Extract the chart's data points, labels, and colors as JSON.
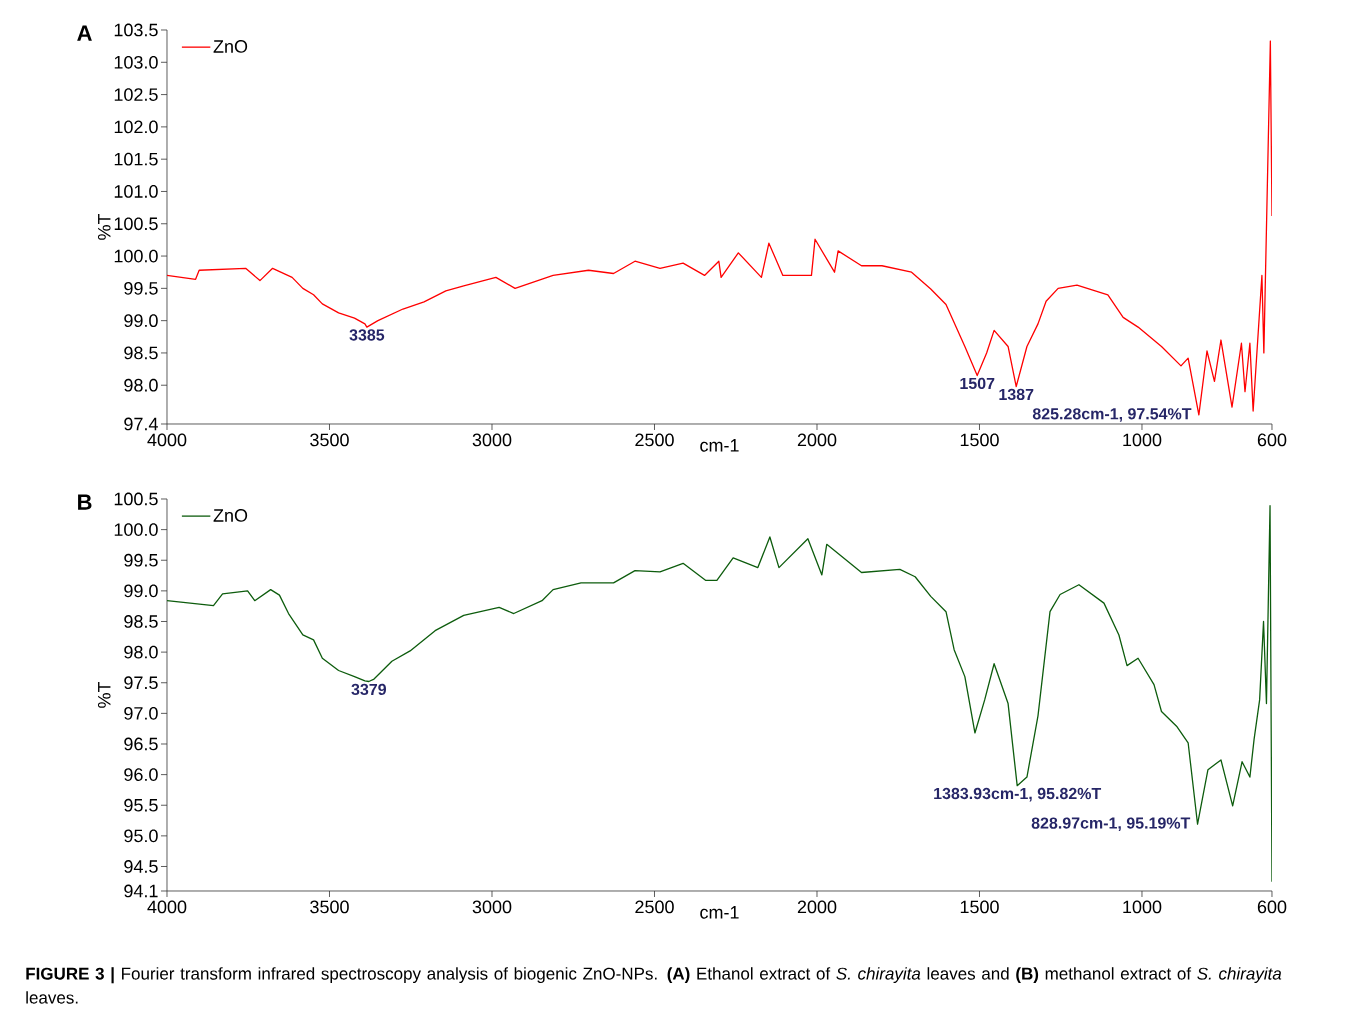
{
  "chart_data": [
    {
      "type": "line",
      "title": "A",
      "xlabel": "cm-1",
      "ylabel": "%T",
      "xlim": [
        4000,
        600
      ],
      "xticks": [
        4000,
        3500,
        3000,
        2500,
        2000,
        1500,
        1000,
        600
      ],
      "ylim": [
        97.4,
        103.5
      ],
      "yticks": [
        97.4,
        {
          "value": 98,
          "label": "98.0"
        },
        98.5,
        {
          "value": 99,
          "label": "99.0"
        },
        99.5,
        {
          "value": 100,
          "label": "100.0"
        },
        100.5,
        {
          "value": 101,
          "label": "101.0"
        },
        101.5,
        {
          "value": 102,
          "label": "102.0"
        },
        102.5,
        {
          "value": 103,
          "label": "103.0"
        },
        103.5
      ],
      "legend": "top left",
      "marker": "none",
      "line_style": "solid",
      "series": [
        {
          "name": "ZnO",
          "color": "#ff0000",
          "x": [
            4000,
            3912,
            3901,
            3758,
            3714,
            3675,
            3615,
            3582,
            3549,
            3522,
            3472,
            3423,
            3391,
            3385,
            3351,
            3274,
            3209,
            3142,
            3087,
            2988,
            2929,
            2812,
            2703,
            2626,
            2560,
            2483,
            2412,
            2346,
            2302,
            2295,
            2242,
            2171,
            2148,
            2105,
            2017,
            2006,
            1946,
            1935,
            1863,
            1800,
            1709,
            1650,
            1603,
            1545,
            1507,
            1478,
            1455,
            1412,
            1387,
            1354,
            1320,
            1295,
            1258,
            1200,
            1105,
            1058,
            1012,
            940,
            880,
            858,
            825,
            800,
            777,
            757,
            723,
            694,
            683,
            668,
            658,
            631,
            625,
            605,
            600
          ],
          "values": [
            99.7,
            99.64,
            99.78,
            99.81,
            99.62,
            99.81,
            99.67,
            99.5,
            99.4,
            99.26,
            99.12,
            99.04,
            98.95,
            98.9,
            99.0,
            99.18,
            99.29,
            99.46,
            99.54,
            99.67,
            99.5,
            99.7,
            99.78,
            99.73,
            99.92,
            99.81,
            99.89,
            99.7,
            99.92,
            99.67,
            100.05,
            99.67,
            100.2,
            99.7,
            99.7,
            100.26,
            99.75,
            100.08,
            99.85,
            99.85,
            99.75,
            99.49,
            99.25,
            98.6,
            98.15,
            98.5,
            98.85,
            98.6,
            97.98,
            98.6,
            98.95,
            99.3,
            99.5,
            99.55,
            99.4,
            99.05,
            98.9,
            98.6,
            98.3,
            98.42,
            97.54,
            98.53,
            98.06,
            98.7,
            97.66,
            98.65,
            97.9,
            98.65,
            97.6,
            99.7,
            98.5,
            103.33,
            100.62
          ]
        }
      ],
      "annotations": [
        {
          "text": "3385",
          "x": 3385,
          "y": 98.9
        },
        {
          "text": "1507",
          "x": 1507,
          "y": 98.15
        },
        {
          "text": "1387",
          "x": 1387,
          "y": 97.98
        },
        {
          "text": "825.28cm-1, 97.54%T",
          "x": 825.28,
          "y": 97.54
        }
      ]
    },
    {
      "type": "line",
      "title": "B",
      "xlabel": "cm-1",
      "ylabel": "%T",
      "xlim": [
        4000,
        600
      ],
      "xticks": [
        4000,
        3500,
        3000,
        2500,
        2000,
        1500,
        1000,
        600
      ],
      "ylim": [
        94.1,
        100.5
      ],
      "yticks": [
        94.1,
        94.5,
        {
          "value": 95,
          "label": "95.0"
        },
        95.5,
        {
          "value": 96,
          "label": "96.0"
        },
        96.5,
        {
          "value": 97,
          "label": "97.0"
        },
        97.5,
        {
          "value": 98,
          "label": "98.0"
        },
        98.5,
        {
          "value": 99,
          "label": "99.0"
        },
        99.5,
        {
          "value": 100,
          "label": "100.0"
        },
        100.5
      ],
      "legend": "top left",
      "marker": "none",
      "line_style": "solid",
      "series": [
        {
          "name": "ZnO",
          "color": "#0d5c0d",
          "x": [
            4000,
            3857,
            3829,
            3752,
            3730,
            3681,
            3654,
            3626,
            3582,
            3549,
            3522,
            3472,
            3423,
            3391,
            3379,
            3363,
            3308,
            3252,
            3175,
            3087,
            2978,
            2933,
            2846,
            2812,
            2726,
            2626,
            2560,
            2483,
            2412,
            2342,
            2308,
            2258,
            2182,
            2145,
            2117,
            2028,
            1985,
            1970,
            1863,
            1745,
            1698,
            1650,
            1603,
            1578,
            1545,
            1514,
            1484,
            1455,
            1412,
            1384,
            1354,
            1320,
            1283,
            1252,
            1194,
            1117,
            1071,
            1046,
            1012,
            963,
            940,
            892,
            858,
            829,
            797,
            757,
            721,
            692,
            668,
            655,
            638,
            626,
            617,
            606,
            600
          ],
          "values": [
            98.84,
            98.76,
            98.95,
            99.0,
            98.84,
            99.02,
            98.93,
            98.63,
            98.28,
            98.2,
            97.9,
            97.7,
            97.6,
            97.53,
            97.52,
            97.56,
            97.85,
            98.02,
            98.35,
            98.6,
            98.73,
            98.63,
            98.84,
            99.02,
            99.13,
            99.13,
            99.33,
            99.31,
            99.45,
            99.17,
            99.17,
            99.54,
            99.38,
            99.88,
            99.38,
            99.85,
            99.26,
            99.76,
            99.3,
            99.35,
            99.23,
            98.91,
            98.66,
            98.04,
            97.6,
            96.68,
            97.22,
            97.81,
            97.16,
            95.82,
            95.96,
            96.96,
            98.66,
            98.94,
            99.1,
            98.8,
            98.28,
            97.78,
            97.9,
            97.47,
            97.03,
            96.78,
            96.52,
            95.19,
            96.08,
            96.24,
            95.49,
            96.21,
            95.96,
            96.58,
            97.22,
            98.5,
            97.16,
            100.39,
            94.25
          ]
        }
      ],
      "annotations": [
        {
          "text": "3379",
          "x": 3379,
          "y": 97.52
        },
        {
          "text": "1383.93cm-1, 95.82%T",
          "x": 1383.93,
          "y": 95.82
        },
        {
          "text": "828.97cm-1, 95.19%T",
          "x": 828.97,
          "y": 95.19
        },
        "**FIGURE 3 |** Fourier transform infrared spectroscopy analysis of biogenic ZnO-NPs. **(A)** Ethanol extract of *S. chirayita* leaves and **(B)** methanol extract of *S. chirayita* leaves."
      ]
    }
  ]
}
